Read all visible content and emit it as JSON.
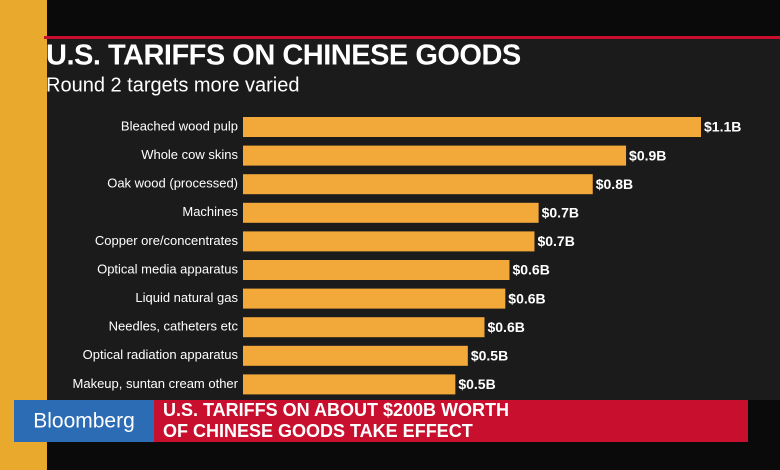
{
  "chart_data": {
    "type": "hbar",
    "title": "U.S. TARIFFS ON CHINESE GOODS",
    "subtitle": "Round 2 targets more varied",
    "categories": [
      "Bleached wood pulp",
      "Whole cow skins",
      "Oak wood (processed)",
      "Machines",
      "Copper ore/concentrates",
      "Optical media apparatus",
      "Liquid natural gas",
      "Needles, catheters etc",
      "Optical radiation apparatus",
      "Makeup, suntan cream other"
    ],
    "values": [
      1.1,
      0.92,
      0.84,
      0.71,
      0.7,
      0.64,
      0.63,
      0.58,
      0.54,
      0.51
    ],
    "value_labels": [
      "$1.1B",
      "$0.9B",
      "$0.8B",
      "$0.7B",
      "$0.7B",
      "$0.6B",
      "$0.6B",
      "$0.6B",
      "$0.5B",
      "$0.5B"
    ],
    "color": "#f2a93a"
  },
  "ticker": {
    "logo": "Bloomberg",
    "headline": [
      "U.S. TARIFFS ON ABOUT $200B WORTH",
      "OF CHINESE GOODS TAKE EFFECT"
    ]
  }
}
